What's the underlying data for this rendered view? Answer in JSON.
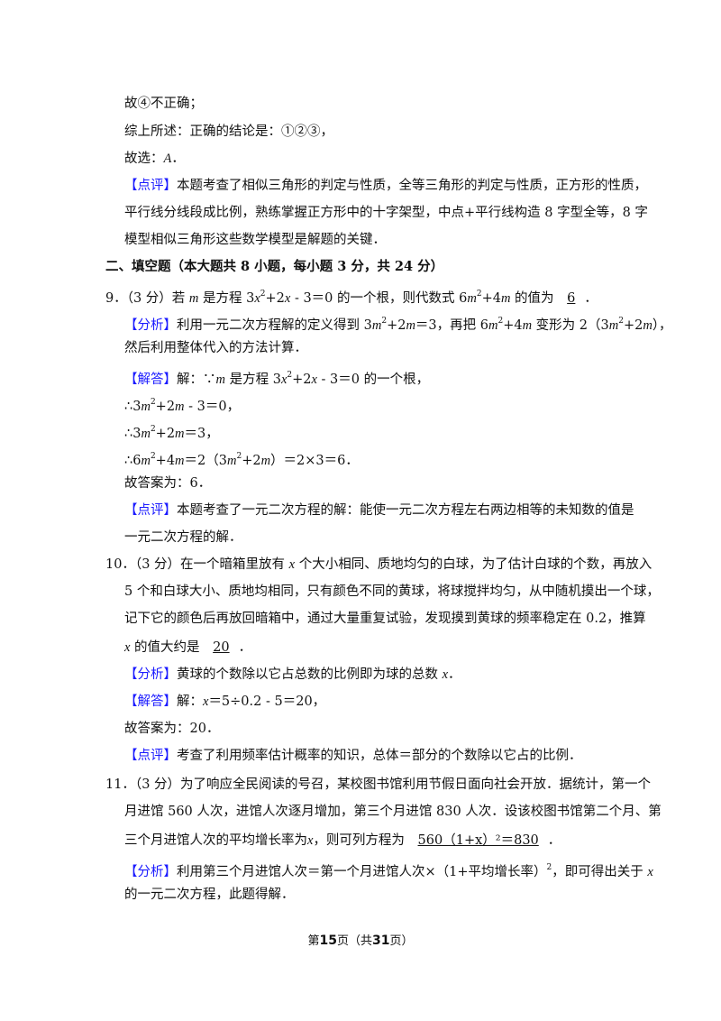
{
  "lines": [
    {
      "kind": "p",
      "segs": [
        {
          "t": "故④不正确；"
        }
      ]
    },
    {
      "kind": "p",
      "segs": [
        {
          "t": "综上所述：正确的结论是：①②③，"
        }
      ]
    },
    {
      "kind": "p",
      "segs": [
        {
          "t": "故选："
        },
        {
          "t": "A",
          "s": "i"
        },
        {
          "t": "．"
        }
      ]
    },
    {
      "kind": "p",
      "segs": [
        {
          "t": "【点评】",
          "s": "tag"
        },
        {
          "t": "本题考查了相似三角形的判定与性质，全等三角形的判定与性质，正方形的性质，"
        }
      ]
    },
    {
      "kind": "p",
      "segs": [
        {
          "t": "平行线分线段成比例，熟练掌握正方形中的十字架型，中点+平行线构造 8 字型全等，8 字"
        }
      ]
    },
    {
      "kind": "p",
      "segs": [
        {
          "t": "模型相似三角形这些数学模型是解题的关键．"
        }
      ]
    },
    {
      "kind": "sec",
      "segs": [
        {
          "t": "二、填空题（本大题共 8 小题，每小题 3 分，共 24 分）"
        }
      ]
    },
    {
      "kind": "q",
      "segs": [
        {
          "t": "9．（3 分）若 "
        },
        {
          "t": "m",
          "s": "i"
        },
        {
          "t": " 是方程 3"
        },
        {
          "t": "x",
          "s": "i"
        },
        {
          "t": "2",
          "s": "sup"
        },
        {
          "t": "+2"
        },
        {
          "t": "x",
          "s": "i"
        },
        {
          "t": " - 3＝0 的一个根，则代数式 6"
        },
        {
          "t": "m",
          "s": "i"
        },
        {
          "t": "2",
          "s": "sup"
        },
        {
          "t": "+4"
        },
        {
          "t": "m",
          "s": "i"
        },
        {
          "t": " 的值为 "
        },
        {
          "t": "6",
          "s": "u"
        },
        {
          "t": "．"
        }
      ]
    },
    {
      "kind": "p",
      "segs": [
        {
          "t": "【分析】",
          "s": "tag"
        },
        {
          "t": "利用一元二次方程解的定义得到 3"
        },
        {
          "t": "m",
          "s": "i"
        },
        {
          "t": "2",
          "s": "sup"
        },
        {
          "t": "+2"
        },
        {
          "t": "m",
          "s": "i"
        },
        {
          "t": "＝3，再把 6"
        },
        {
          "t": "m",
          "s": "i"
        },
        {
          "t": "2",
          "s": "sup"
        },
        {
          "t": "+4"
        },
        {
          "t": "m",
          "s": "i"
        },
        {
          "t": " 变形为 2（3"
        },
        {
          "t": "m",
          "s": "i"
        },
        {
          "t": "2",
          "s": "sup"
        },
        {
          "t": "+2"
        },
        {
          "t": "m",
          "s": "i"
        },
        {
          "t": "），"
        }
      ]
    },
    {
      "kind": "p",
      "segs": [
        {
          "t": "然后利用整体代入的方法计算．"
        }
      ]
    },
    {
      "kind": "p",
      "segs": [
        {
          "t": "【解答】",
          "s": "tag"
        },
        {
          "t": "解：∵"
        },
        {
          "t": "m",
          "s": "i"
        },
        {
          "t": " 是方程 3"
        },
        {
          "t": "x",
          "s": "i"
        },
        {
          "t": "2",
          "s": "sup"
        },
        {
          "t": "+2"
        },
        {
          "t": "x",
          "s": "i"
        },
        {
          "t": " - 3＝0 的一个根，"
        }
      ]
    },
    {
      "kind": "p",
      "segs": [
        {
          "t": "∴3"
        },
        {
          "t": "m",
          "s": "i"
        },
        {
          "t": "2",
          "s": "sup"
        },
        {
          "t": "+2"
        },
        {
          "t": "m",
          "s": "i"
        },
        {
          "t": " - 3＝0，"
        }
      ]
    },
    {
      "kind": "p",
      "segs": [
        {
          "t": "∴3"
        },
        {
          "t": "m",
          "s": "i"
        },
        {
          "t": "2",
          "s": "sup"
        },
        {
          "t": "+2"
        },
        {
          "t": "m",
          "s": "i"
        },
        {
          "t": "＝3，"
        }
      ]
    },
    {
      "kind": "p",
      "segs": [
        {
          "t": "∴6"
        },
        {
          "t": "m",
          "s": "i"
        },
        {
          "t": "2",
          "s": "sup"
        },
        {
          "t": "+4"
        },
        {
          "t": "m",
          "s": "i"
        },
        {
          "t": "＝2（3"
        },
        {
          "t": "m",
          "s": "i"
        },
        {
          "t": "2",
          "s": "sup"
        },
        {
          "t": "+2"
        },
        {
          "t": "m",
          "s": "i"
        },
        {
          "t": "）＝2×3＝6．"
        }
      ]
    },
    {
      "kind": "p",
      "segs": [
        {
          "t": "故答案为：6．"
        }
      ]
    },
    {
      "kind": "p",
      "segs": [
        {
          "t": "【点评】",
          "s": "tag"
        },
        {
          "t": "本题考查了一元二次方程的解：能使一元二次方程左右两边相等的未知数的值是"
        }
      ]
    },
    {
      "kind": "p",
      "segs": [
        {
          "t": "一元二次方程的解．"
        }
      ]
    },
    {
      "kind": "q",
      "segs": [
        {
          "t": "10．（3 分）在一个暗箱里放有 "
        },
        {
          "t": "x",
          "s": "i"
        },
        {
          "t": " 个大小相同、质地均匀的白球，为了估计白球的个数，再放入"
        }
      ]
    },
    {
      "kind": "p",
      "segs": [
        {
          "t": "5 个和白球大小、质地均相同，只有颜色不同的黄球，将球搅拌均匀，从中随机摸出一个球，"
        }
      ]
    },
    {
      "kind": "p",
      "segs": [
        {
          "t": "记下它的颜色后再放回暗箱中，通过大量重复试验，发现摸到黄球的频率稳定在 0.2，推算"
        }
      ]
    },
    {
      "kind": "p",
      "segs": [
        {
          "t": "x",
          "s": "i"
        },
        {
          "t": " 的值大约是 "
        },
        {
          "t": "20",
          "s": "u"
        },
        {
          "t": "．"
        }
      ]
    },
    {
      "kind": "p",
      "segs": [
        {
          "t": "【分析】",
          "s": "tag"
        },
        {
          "t": "黄球的个数除以它占总数的比例即为球的总数 "
        },
        {
          "t": "x",
          "s": "i"
        },
        {
          "t": "．"
        }
      ]
    },
    {
      "kind": "p",
      "segs": [
        {
          "t": "【解答】",
          "s": "tag"
        },
        {
          "t": "解："
        },
        {
          "t": "x",
          "s": "i"
        },
        {
          "t": "＝5÷0.2 - 5＝20，"
        }
      ]
    },
    {
      "kind": "p",
      "segs": [
        {
          "t": "故答案为：20．"
        }
      ]
    },
    {
      "kind": "p",
      "segs": [
        {
          "t": "【点评】",
          "s": "tag"
        },
        {
          "t": "考查了利用频率估计概率的知识，总体＝部分的个数除以它占的比例．"
        }
      ]
    },
    {
      "kind": "q",
      "segs": [
        {
          "t": "11．（3 分）为了响应全民阅读的号召，某校图书馆利用节假日面向社会开放．据统计，第一个"
        }
      ]
    },
    {
      "kind": "p",
      "segs": [
        {
          "t": "月进馆 560 人次，进馆人次逐月增加，第三个月进馆 830 人次．设该校图书馆第二个月、第"
        }
      ]
    },
    {
      "kind": "p",
      "segs": [
        {
          "t": "三个月进馆人次的平均增长率为"
        },
        {
          "t": "x",
          "s": "i"
        },
        {
          "t": "，则可列方程为 "
        },
        {
          "t": "560（1+x）²＝830",
          "s": "u"
        },
        {
          "t": "．"
        }
      ]
    },
    {
      "kind": "p",
      "segs": [
        {
          "t": "【分析】",
          "s": "tag"
        },
        {
          "t": "利用第三个月进馆人次＝第一个月进馆人次×（1+平均增长率）"
        },
        {
          "t": "2",
          "s": "sup"
        },
        {
          "t": "，即可得出关于 "
        },
        {
          "t": "x",
          "s": "i"
        }
      ]
    },
    {
      "kind": "p",
      "segs": [
        {
          "t": "的一元二次方程，此题得解．"
        }
      ]
    }
  ],
  "footer": {
    "pre": "第",
    "page": "15",
    "mid": "页（共",
    "total": "31",
    "post": "页）"
  },
  "colors": {
    "tag": "#1a1aff",
    "text": "#111111"
  }
}
